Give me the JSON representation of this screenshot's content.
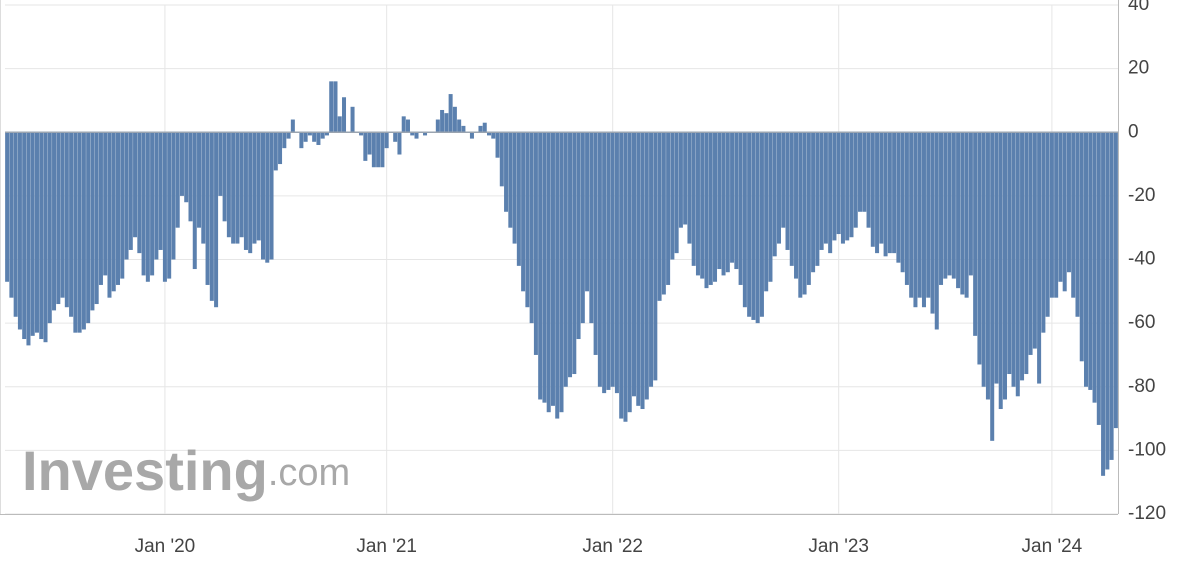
{
  "chart_data": {
    "type": "bar",
    "watermark": {
      "brand": "Investing",
      "suffix": ".com"
    },
    "categories": [
      null,
      null,
      null,
      null,
      null,
      null,
      null,
      null,
      null,
      null,
      null,
      null,
      null,
      null,
      null,
      null,
      null,
      null,
      null,
      null,
      null,
      null,
      null,
      null,
      null,
      null,
      null,
      null,
      null,
      null,
      null,
      null,
      null,
      null,
      null,
      null,
      null,
      "Jan '20",
      null,
      null,
      null,
      null,
      null,
      null,
      null,
      null,
      null,
      null,
      null,
      null,
      null,
      null,
      null,
      null,
      null,
      null,
      null,
      null,
      null,
      null,
      null,
      null,
      null,
      null,
      null,
      null,
      null,
      null,
      null,
      null,
      null,
      null,
      null,
      null,
      null,
      null,
      null,
      null,
      null,
      null,
      null,
      null,
      null,
      null,
      null,
      null,
      null,
      null,
      null,
      "Jan '21",
      null,
      null,
      null,
      null,
      null,
      null,
      null,
      null,
      null,
      null,
      null,
      null,
      null,
      null,
      null,
      null,
      null,
      null,
      null,
      null,
      null,
      null,
      null,
      null,
      null,
      null,
      null,
      null,
      null,
      null,
      null,
      null,
      null,
      null,
      null,
      null,
      null,
      null,
      null,
      null,
      null,
      null,
      null,
      null,
      null,
      null,
      null,
      null,
      null,
      null,
      null,
      null,
      "Jan '22",
      null,
      null,
      null,
      null,
      null,
      null,
      null,
      null,
      null,
      null,
      null,
      null,
      null,
      null,
      null,
      null,
      null,
      null,
      null,
      null,
      null,
      null,
      null,
      null,
      null,
      null,
      null,
      null,
      null,
      null,
      null,
      null,
      null,
      null,
      null,
      null,
      null,
      null,
      null,
      null,
      null,
      null,
      null,
      null,
      null,
      null,
      null,
      null,
      null,
      null,
      null,
      null,
      "Jan '23",
      null,
      null,
      null,
      null,
      null,
      null,
      null,
      null,
      null,
      null,
      null,
      null,
      null,
      null,
      null,
      null,
      null,
      null,
      null,
      null,
      null,
      null,
      null,
      null,
      null,
      null,
      null,
      null,
      null,
      null,
      null,
      null,
      null,
      null,
      null,
      null,
      null,
      null,
      null,
      null,
      null,
      null,
      null,
      null,
      null,
      null,
      null,
      null,
      null,
      "Jan '24",
      null,
      null,
      null,
      null,
      null,
      null,
      null,
      null,
      null,
      null,
      null,
      null,
      null,
      null,
      null
    ],
    "values": [
      -47,
      -52,
      -58,
      -62,
      -65,
      -67,
      -64,
      -63,
      -65,
      -66,
      -60,
      -56,
      -54,
      -52,
      -55,
      -58,
      -63,
      -63,
      -62,
      -60,
      -56,
      -54,
      -48,
      -45,
      -52,
      -50,
      -48,
      -46,
      -40,
      -37,
      -33,
      -38,
      -45,
      -47,
      -45,
      -40,
      -37,
      -47,
      -46,
      -40,
      -30,
      -20,
      -22,
      -28,
      -43,
      -30,
      -35,
      -48,
      -53,
      -55,
      -20,
      -28,
      -33,
      -35,
      -35,
      -33,
      -37,
      -38,
      -35,
      -34,
      -40,
      -41,
      -40,
      -12,
      -10,
      -5,
      -2,
      4,
      0,
      -5,
      -3,
      -1,
      -3,
      -4,
      -2,
      -1,
      16,
      16,
      5,
      11,
      0,
      8,
      0,
      -1,
      -9,
      -7,
      -11,
      -11,
      -11,
      -5,
      0,
      -3,
      -7,
      5,
      4,
      -1,
      -2,
      0,
      -1,
      0,
      0,
      4,
      7,
      6,
      12,
      8,
      4,
      2,
      0,
      -2,
      0,
      2,
      3,
      -1,
      -2,
      -8,
      -17,
      -25,
      -30,
      -35,
      -42,
      -50,
      -55,
      -60,
      -70,
      -84,
      -85,
      -88,
      -86,
      -90,
      -88,
      -80,
      -77,
      -76,
      -65,
      -60,
      -50,
      -60,
      -70,
      -80,
      -82,
      -81,
      -80,
      -82,
      -90,
      -91,
      -88,
      -83,
      -86,
      -87,
      -84,
      -80,
      -78,
      -53,
      -51,
      -48,
      -40,
      -38,
      -30,
      -29,
      -35,
      -42,
      -45,
      -46,
      -49,
      -48,
      -47,
      -43,
      -45,
      -44,
      -41,
      -43,
      -48,
      -55,
      -58,
      -59,
      -60,
      -58,
      -50,
      -47,
      -39,
      -35,
      -30,
      -37,
      -42,
      -46,
      -52,
      -51,
      -48,
      -44,
      -42,
      -37,
      -35,
      -38,
      -34,
      -32,
      -35,
      -34,
      -33,
      -30,
      -25,
      -25,
      -30,
      -36,
      -38,
      -35,
      -39,
      -38,
      -38,
      -41,
      -44,
      -48,
      -52,
      -55,
      -52,
      -55,
      -52,
      -57,
      -62,
      -48,
      -46,
      -45,
      -46,
      -49,
      -51,
      -52,
      -45,
      -64,
      -73,
      -80,
      -84,
      -97,
      -79,
      -87,
      -84,
      -76,
      -80,
      -83,
      -78,
      -76,
      -70,
      -68,
      -79,
      -63,
      -58,
      -52,
      -52,
      -47,
      -50,
      -44,
      -52,
      -58,
      -72,
      -80,
      -81,
      -85,
      -92,
      -108,
      -106,
      -103,
      -93
    ],
    "color": "#5b80ae",
    "ylim": [
      -120,
      40
    ],
    "yticks": [
      40,
      20,
      0,
      -20,
      -40,
      -60,
      -80,
      -100,
      -120
    ],
    "grid": true
  }
}
